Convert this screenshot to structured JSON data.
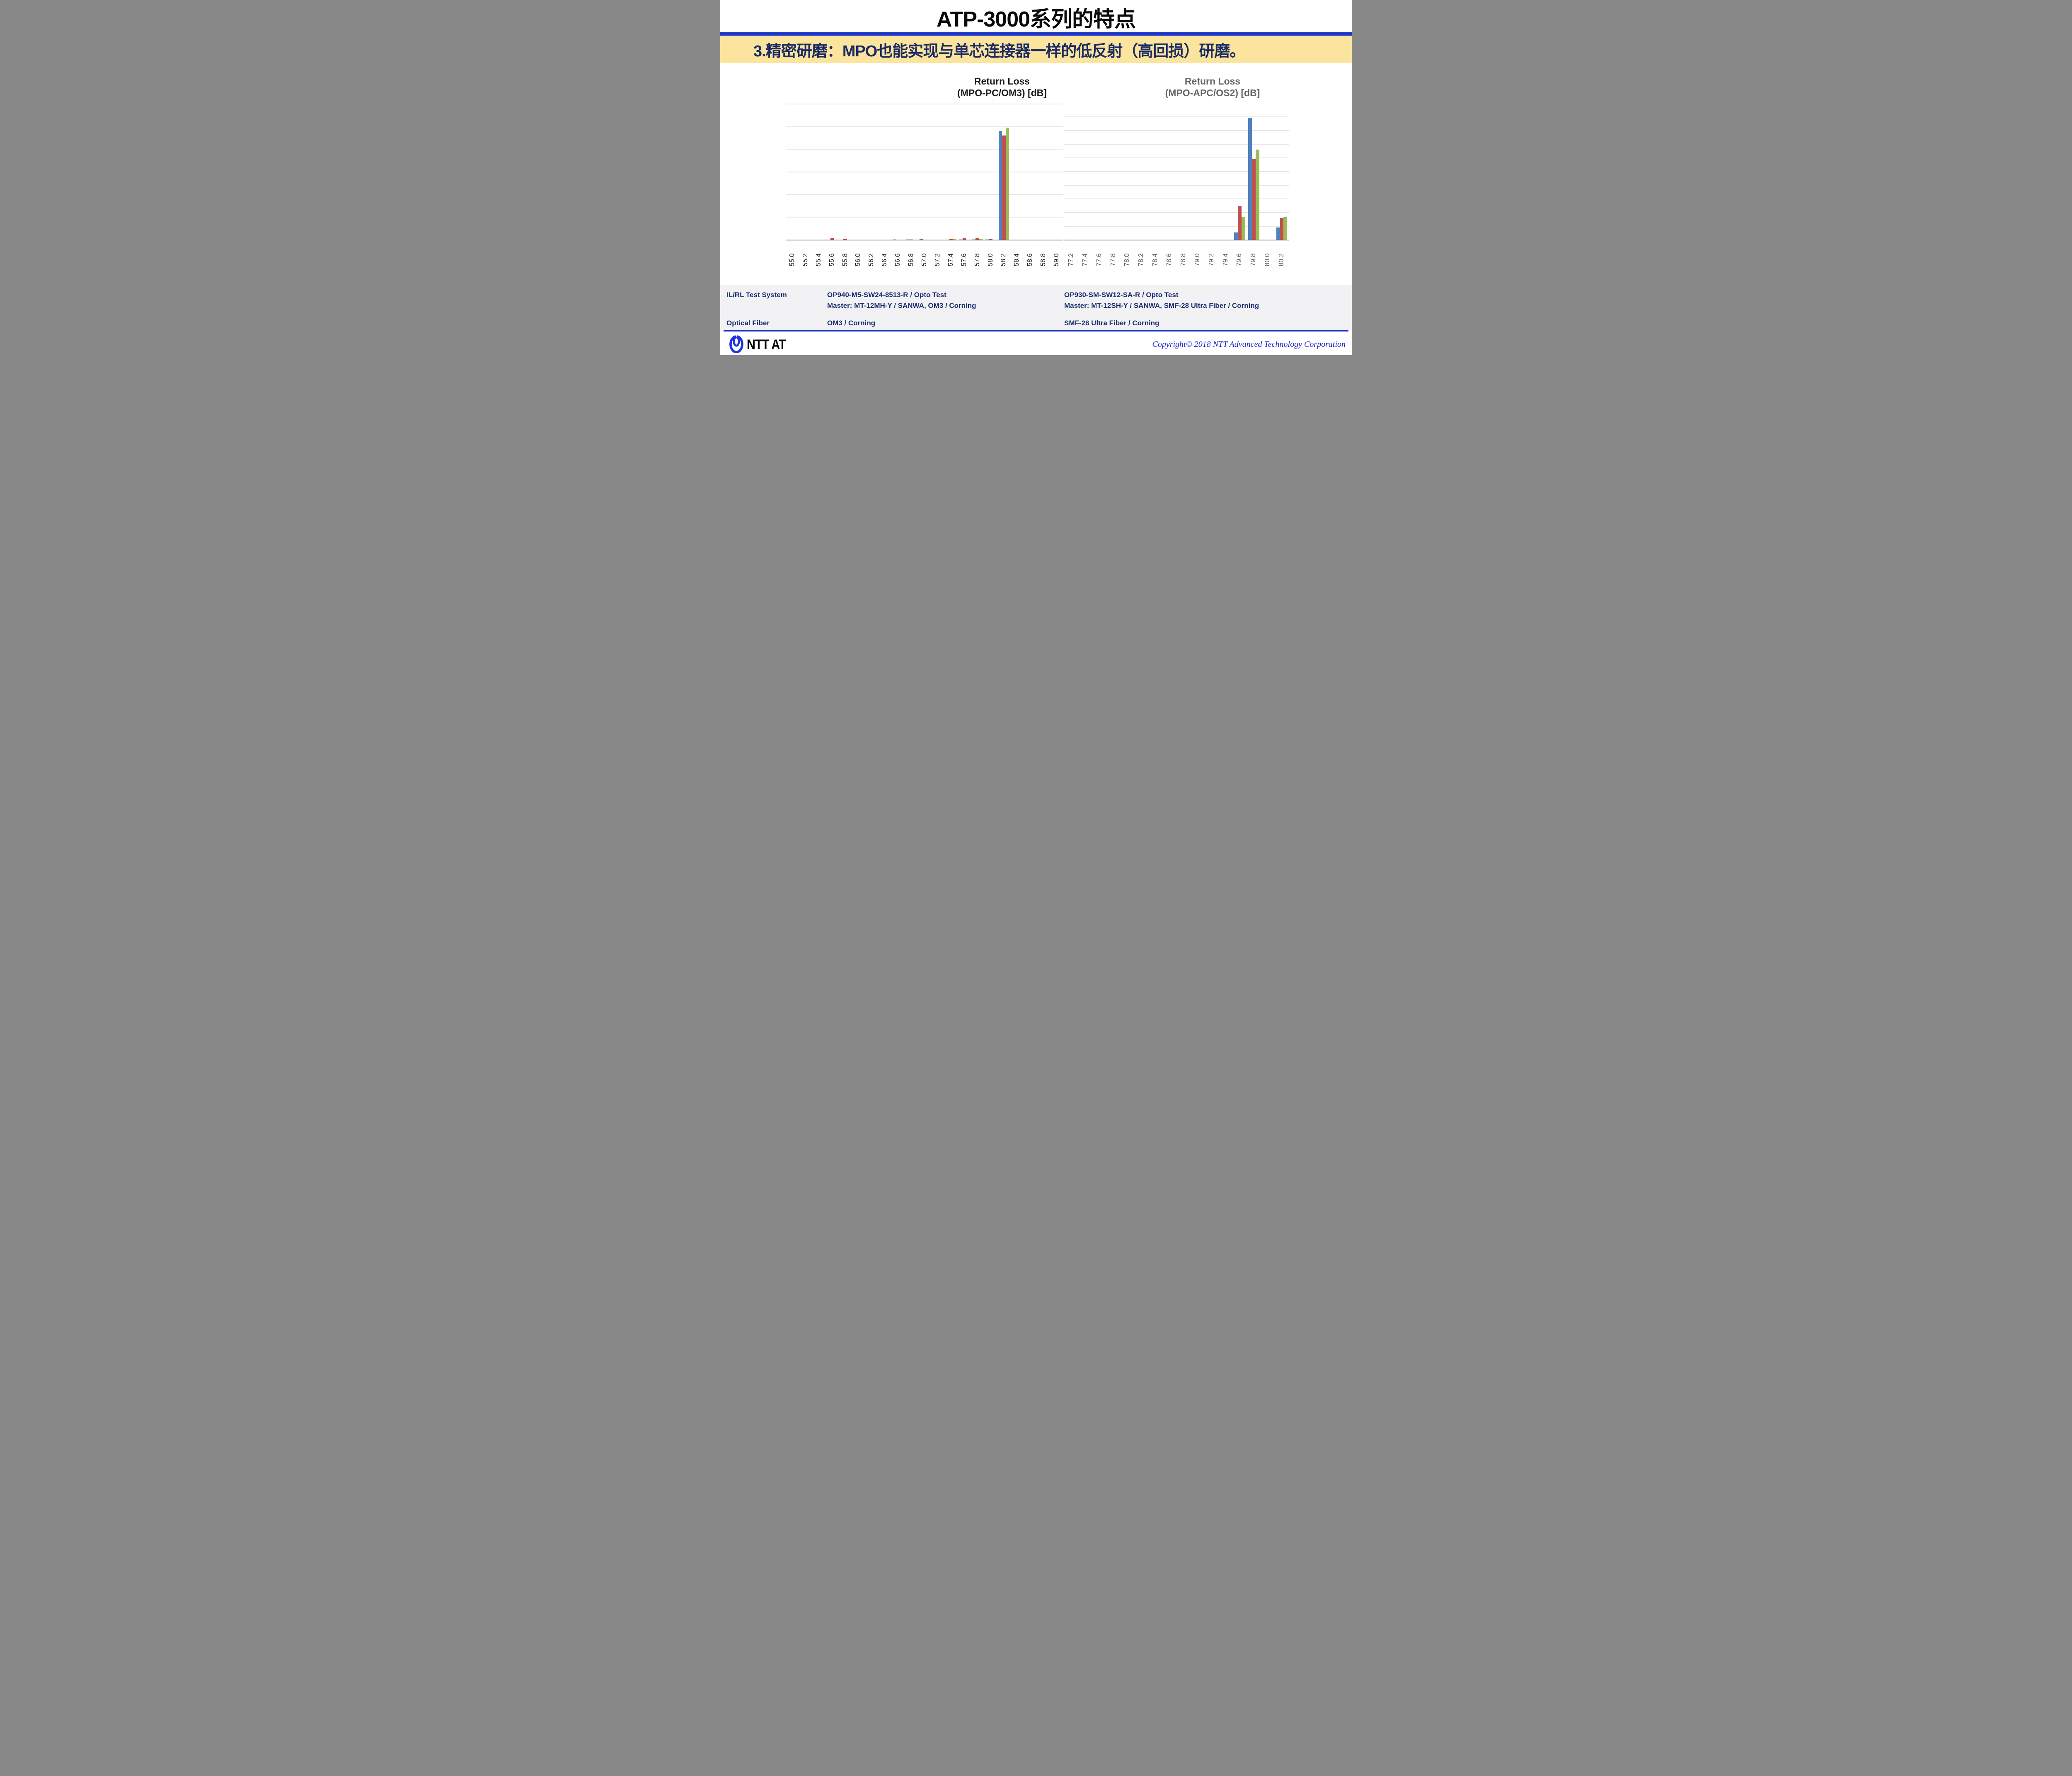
{
  "slide": {
    "title": "ATP-3000系列的特点",
    "banner": "3.精密研磨：MPO也能实现与单芯连接器一样的低反射（高回损）研磨。",
    "colors": {
      "accent_blue": "#2038C8",
      "banner_bg": "#FBE49D",
      "banner_text": "#1A2A64",
      "table_bg": "#F2F2F4",
      "table_text": "#1A2F6E",
      "copyright_text": "#2323C8",
      "series_blue": "#4F81BD",
      "series_red": "#C0504D",
      "series_green": "#9BBB59",
      "gridline": "#E4E4E4"
    }
  },
  "chart_data": [
    {
      "type": "bar",
      "title_line1": "Return Loss",
      "title_line2": "(MPO-PC/OM3) [dB]",
      "title_color": "#1A1A1A",
      "tick_color": "#1A1A1A",
      "xlabel": "",
      "ylabel": "",
      "ylim": [
        0,
        600
      ],
      "grid_interval": 100,
      "legend": "none",
      "categories": [
        "55.0",
        "55.2",
        "55.4",
        "55.6",
        "55.8",
        "56.0",
        "56.2",
        "56.4",
        "56.6",
        "56.8",
        "57.0",
        "57.2",
        "57.4",
        "57.6",
        "57.8",
        "58.0",
        "58.2",
        "58.4",
        "58.6",
        "58.8",
        "59.0"
      ],
      "series": [
        {
          "name": "Blue",
          "color": "#4F81BD",
          "values": [
            0,
            0,
            0,
            0,
            0,
            0,
            0,
            0,
            2,
            2,
            6,
            0,
            0,
            2,
            2,
            2,
            481,
            0,
            0,
            0,
            0
          ]
        },
        {
          "name": "Red",
          "color": "#C0504D",
          "values": [
            0,
            0,
            0,
            7,
            3,
            0,
            0,
            0,
            0,
            2,
            0,
            0,
            3,
            10,
            7,
            3,
            461,
            0,
            0,
            0,
            0
          ]
        },
        {
          "name": "Green",
          "color": "#9BBB59",
          "values": [
            0,
            0,
            0,
            0,
            0,
            0,
            0,
            0,
            0,
            0,
            0,
            0,
            3,
            0,
            3,
            0,
            496,
            0,
            0,
            0,
            0
          ]
        }
      ]
    },
    {
      "type": "bar",
      "title_line1": "Return Loss",
      "title_line2": "(MPO-APC/OS2) [dB]",
      "title_color": "#666666",
      "tick_color": "#595959",
      "xlabel": "",
      "ylabel": "",
      "ylim": [
        0,
        450
      ],
      "grid_interval": 50,
      "legend": "none",
      "categories": [
        "77.2",
        "77.4",
        "77.6",
        "77.8",
        "78.0",
        "78.2",
        "78.4",
        "78.6",
        "78.8",
        "79.0",
        "79.2",
        "79.4",
        "79.6",
        "79.8",
        "80.0",
        "80.2"
      ],
      "series": [
        {
          "name": "Blue",
          "color": "#4F81BD",
          "values": [
            0,
            0,
            0,
            0,
            0,
            0,
            0,
            0,
            0,
            0,
            0,
            0,
            28,
            447,
            0,
            45
          ]
        },
        {
          "name": "Red",
          "color": "#C0504D",
          "values": [
            0,
            0,
            0,
            0,
            0,
            0,
            0,
            0,
            0,
            0,
            0,
            0,
            125,
            295,
            0,
            80
          ]
        },
        {
          "name": "Green",
          "color": "#9BBB59",
          "values": [
            0,
            0,
            0,
            0,
            0,
            0,
            0,
            0,
            0,
            0,
            0,
            0,
            85,
            331,
            0,
            84
          ]
        }
      ]
    }
  ],
  "table": {
    "rows": [
      {
        "label": "IL/RL Test System",
        "left_line1": "OP940-M5-SW24-8513-R / Opto Test",
        "left_line2": "Master: MT-12MH-Y / SANWA, OM3 / Corning",
        "right_line1": "OP930-SM-SW12-SA-R / Opto Test",
        "right_line2": "Master: MT-12SH-Y / SANWA, SMF-28 Ultra Fiber /  Corning"
      },
      {
        "label": "Optical Fiber",
        "left_line1": "OM3 / Corning",
        "right_line1": "SMF-28 Ultra Fiber / Corning"
      }
    ]
  },
  "footer": {
    "logo_text": "NTT AT",
    "copyright": "Copyright© 2018 NTT Advanced Technology Corporation"
  }
}
